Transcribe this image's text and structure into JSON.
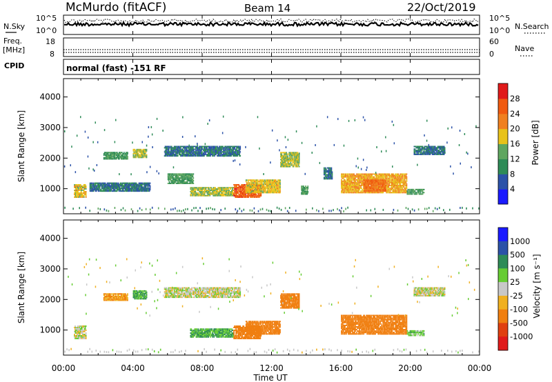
{
  "header": {
    "station": "McMurdo (fitACF)",
    "beam": "Beam 14",
    "date": "22/Oct/2019"
  },
  "noise_panel": {
    "left_label": "N.Sky",
    "right_label": "N.Search",
    "left_ticks": [
      "10^5",
      "10^0"
    ],
    "right_ticks": [
      "10^5",
      "10^0"
    ]
  },
  "freq_panel": {
    "left_label_1": "Freq.",
    "left_label_2": "[MHz]",
    "right_label": "Nave",
    "left_ticks": [
      "18",
      "8"
    ],
    "right_ticks": [
      "60",
      "0"
    ]
  },
  "cpid": {
    "label": "CPID",
    "text": "normal (fast) -151 RF"
  },
  "power_panel": {
    "ylabel": "Slant Range [km]",
    "yticks": [
      "1000",
      "2000",
      "3000",
      "4000"
    ],
    "colorbar_label": "Power [dB]",
    "colorbar_ticks": [
      "4",
      "8",
      "12",
      "16",
      "20",
      "24",
      "28"
    ],
    "colors": [
      "#1a1aff",
      "#2b52a8",
      "#2e8b57",
      "#5fa65f",
      "#e8c21a",
      "#f08020",
      "#f05a10",
      "#e01a1a"
    ]
  },
  "velocity_panel": {
    "ylabel": "Slant Range [km]",
    "yticks": [
      "1000",
      "2000",
      "3000",
      "4000"
    ],
    "colorbar_label": "Velocity [m s⁻¹]",
    "colorbar_ticks": [
      "1000",
      "500",
      "100",
      "25",
      "-25",
      "-100",
      "-500",
      "-1000"
    ],
    "colors": [
      "#1a1aff",
      "#2b52a8",
      "#2e8b57",
      "#66cc33",
      "#c8c8c8",
      "#f0b020",
      "#f07f10",
      "#e04010",
      "#e01a1a"
    ]
  },
  "xaxis": {
    "ticks": [
      "00:00",
      "04:00",
      "08:00",
      "12:00",
      "16:00",
      "20:00",
      "00:00"
    ],
    "label": "Time UT"
  },
  "chart_data": {
    "type": "heatmap",
    "title": "McMurdo (fitACF) Beam 14 22/Oct/2019",
    "xlabel": "Time UT",
    "ylabel": "Slant Range [km]",
    "xlim": [
      0,
      24
    ],
    "ylim": [
      180,
      4600
    ],
    "series": [
      {
        "name": "Power",
        "unit": "dB",
        "patches": [
          {
            "t": [
              0.6,
              1.3
            ],
            "r": [
              700,
              1150
            ],
            "v": 18
          },
          {
            "t": [
              2.3,
              3.7
            ],
            "r": [
              1950,
              2200
            ],
            "v": 12
          },
          {
            "t": [
              4.0,
              4.8
            ],
            "r": [
              2000,
              2300
            ],
            "v": 16
          },
          {
            "t": [
              1.5,
              5.0
            ],
            "r": [
              900,
              1200
            ],
            "v": 8
          },
          {
            "t": [
              5.8,
              10.2
            ],
            "r": [
              2050,
              2400
            ],
            "v": 8
          },
          {
            "t": [
              6.0,
              7.5
            ],
            "r": [
              1150,
              1500
            ],
            "v": 12
          },
          {
            "t": [
              7.3,
              9.8
            ],
            "r": [
              750,
              1050
            ],
            "v": 16
          },
          {
            "t": [
              9.8,
              11.4
            ],
            "r": [
              700,
              1150
            ],
            "v": 26
          },
          {
            "t": [
              10.5,
              12.5
            ],
            "r": [
              850,
              1300
            ],
            "v": 18
          },
          {
            "t": [
              12.5,
              13.6
            ],
            "r": [
              1700,
              2200
            ],
            "v": 16
          },
          {
            "t": [
              13.7,
              14.1
            ],
            "r": [
              800,
              1100
            ],
            "v": 12
          },
          {
            "t": [
              15.0,
              15.5
            ],
            "r": [
              1300,
              1700
            ],
            "v": 8
          },
          {
            "t": [
              16.0,
              19.8
            ],
            "r": [
              850,
              1500
            ],
            "v": 20
          },
          {
            "t": [
              17.3,
              18.6
            ],
            "r": [
              900,
              1300
            ],
            "v": 24
          },
          {
            "t": [
              19.8,
              20.8
            ],
            "r": [
              800,
              1000
            ],
            "v": 12
          },
          {
            "t": [
              20.2,
              22.0
            ],
            "r": [
              2100,
              2400
            ],
            "v": 8
          }
        ]
      },
      {
        "name": "Velocity",
        "unit": "m s-1",
        "patches": [
          {
            "t": [
              0.6,
              1.3
            ],
            "r": [
              700,
              1150
            ],
            "v": 0
          },
          {
            "t": [
              2.3,
              3.7
            ],
            "r": [
              1950,
              2200
            ],
            "v": -100
          },
          {
            "t": [
              4.0,
              4.8
            ],
            "r": [
              2000,
              2300
            ],
            "v": 100
          },
          {
            "t": [
              5.8,
              10.2
            ],
            "r": [
              2050,
              2400
            ],
            "v": 0
          },
          {
            "t": [
              7.3,
              9.8
            ],
            "r": [
              750,
              1050
            ],
            "v": 100
          },
          {
            "t": [
              9.8,
              11.4
            ],
            "r": [
              700,
              1150
            ],
            "v": -250
          },
          {
            "t": [
              10.5,
              12.5
            ],
            "r": [
              850,
              1300
            ],
            "v": -250
          },
          {
            "t": [
              12.5,
              13.6
            ],
            "r": [
              1700,
              2200
            ],
            "v": -250
          },
          {
            "t": [
              16.0,
              19.8
            ],
            "r": [
              850,
              1500
            ],
            "v": -250
          },
          {
            "t": [
              19.8,
              20.8
            ],
            "r": [
              800,
              1000
            ],
            "v": 60
          },
          {
            "t": [
              20.2,
              22.0
            ],
            "r": [
              2100,
              2400
            ],
            "v": 0
          }
        ]
      }
    ],
    "grid": false
  }
}
